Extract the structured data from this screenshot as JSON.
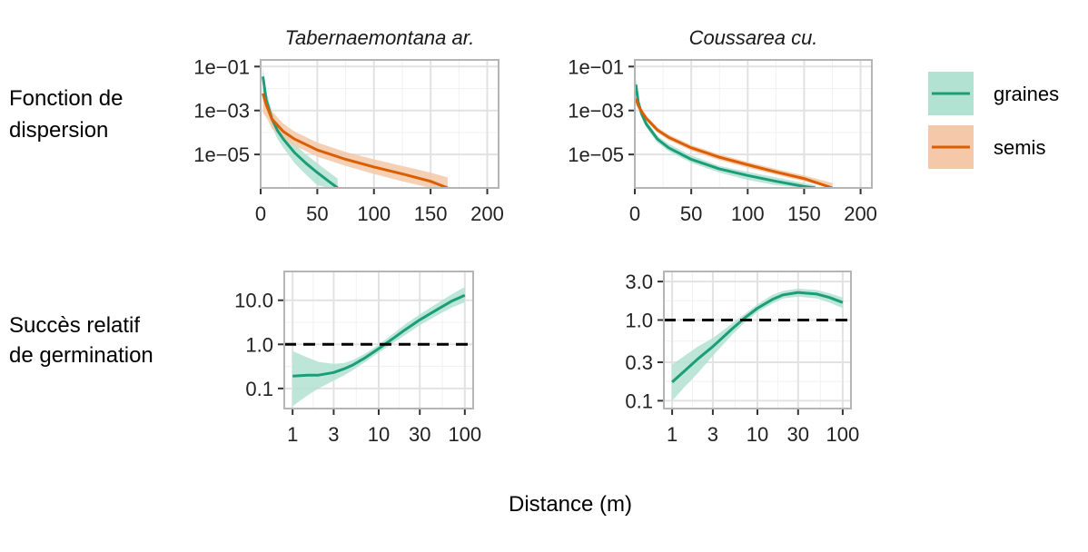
{
  "figure": {
    "row_labels": [
      [
        "Fonction de",
        "dispersion"
      ],
      [
        "Succès relatif",
        "de germination"
      ]
    ],
    "xlabel": "Distance (m)",
    "colors": {
      "graines_line": "#1b9e77",
      "graines_band": "#b2e2d2",
      "semis_line": "#d95f02",
      "semis_band": "#f4c8a8",
      "panel_border": "#b5b5b5",
      "grid_major": "#e2e2e2",
      "grid_minor": "#f1f1f1",
      "reference_line": "#000000"
    },
    "legend": {
      "placement": "right",
      "items": [
        {
          "label": "graines",
          "series": "graines"
        },
        {
          "label": "semis",
          "series": "semis"
        }
      ]
    }
  },
  "chart_data": [
    {
      "id": "disp-tab",
      "type": "line",
      "title": "Tabernaemontana ar.",
      "xscale": "linear",
      "yscale": "log10",
      "xlim": [
        0,
        210
      ],
      "ylim": [
        3e-07,
        0.2
      ],
      "x_ticks": [
        0,
        50,
        100,
        150,
        200
      ],
      "x_tick_labels": [
        "0",
        "50",
        "100",
        "150",
        "200"
      ],
      "y_ticks": [
        0.1,
        0.001,
        1e-05
      ],
      "y_tick_labels": [
        "1e−01",
        "1e−03",
        "1e−05"
      ],
      "series": [
        {
          "name": "graines",
          "x": [
            2,
            5,
            10,
            15,
            20,
            30,
            40,
            50,
            60,
            68
          ],
          "y": [
            0.035,
            0.003,
            0.0004,
            0.00012,
            5e-05,
            1.2e-05,
            4e-06,
            1.5e-06,
            6e-07,
            3e-07
          ],
          "lower": [
            0.01,
            0.0012,
            0.00018,
            5e-05,
            2e-05,
            4e-06,
            1.2e-06,
            4e-07,
            3e-07,
            3e-07
          ],
          "upper": [
            0.09,
            0.007,
            0.0009,
            0.00028,
            0.00012,
            3e-05,
            1e-05,
            4e-06,
            1.6e-06,
            8e-07
          ]
        },
        {
          "name": "semis",
          "x": [
            2,
            5,
            10,
            20,
            30,
            50,
            75,
            100,
            125,
            150,
            165
          ],
          "y": [
            0.006,
            0.0018,
            0.0004,
            0.00011,
            5e-05,
            1.6e-05,
            6e-06,
            2.7e-06,
            1.3e-06,
            6e-07,
            3e-07
          ],
          "lower": [
            0.0008,
            0.0005,
            0.00015,
            5e-05,
            2.5e-05,
            8e-06,
            3e-06,
            1.3e-06,
            6e-07,
            3e-07,
            3e-07
          ],
          "upper": [
            0.012,
            0.0035,
            0.0009,
            0.00025,
            0.00011,
            3.5e-05,
            1.3e-05,
            6e-06,
            3e-06,
            1.5e-06,
            9e-07
          ]
        }
      ]
    },
    {
      "id": "disp-cou",
      "type": "line",
      "title": "Coussarea cu.",
      "xscale": "linear",
      "yscale": "log10",
      "xlim": [
        0,
        210
      ],
      "ylim": [
        3e-07,
        0.2
      ],
      "x_ticks": [
        0,
        50,
        100,
        150,
        200
      ],
      "x_tick_labels": [
        "0",
        "50",
        "100",
        "150",
        "200"
      ],
      "y_ticks": [
        0.1,
        0.001,
        1e-05
      ],
      "y_tick_labels": [
        "1e−01",
        "1e−03",
        "1e−05"
      ],
      "series": [
        {
          "name": "graines",
          "x": [
            1,
            3,
            6,
            10,
            20,
            30,
            50,
            75,
            100,
            125,
            150,
            160
          ],
          "y": [
            0.015,
            0.0025,
            0.0007,
            0.00025,
            5e-05,
            2e-05,
            6e-06,
            2.2e-06,
            1.1e-06,
            6e-07,
            3.5e-07,
            3e-07
          ],
          "lower": [
            0.008,
            0.0015,
            0.0005,
            0.00018,
            3.5e-05,
            1.4e-05,
            4.2e-06,
            1.5e-06,
            7e-07,
            4e-07,
            3e-07,
            3e-07
          ],
          "upper": [
            0.03,
            0.004,
            0.001,
            0.00035,
            7e-05,
            3e-05,
            9e-06,
            3e-06,
            1.6e-06,
            9e-07,
            5e-07,
            4e-07
          ]
        },
        {
          "name": "semis",
          "x": [
            1,
            3,
            6,
            10,
            20,
            30,
            50,
            75,
            100,
            125,
            150,
            175
          ],
          "y": [
            0.0035,
            0.0017,
            0.0009,
            0.00045,
            0.00013,
            6e-05,
            2e-05,
            7.5e-06,
            3.4e-06,
            1.6e-06,
            8e-07,
            3e-07
          ],
          "lower": [
            0.0025,
            0.0012,
            0.00065,
            0.00035,
            0.0001,
            4.5e-05,
            1.5e-05,
            5.5e-06,
            2.5e-06,
            1.2e-06,
            6e-07,
            3e-07
          ],
          "upper": [
            0.005,
            0.0024,
            0.0012,
            0.0006,
            0.00017,
            8e-05,
            2.7e-05,
            1e-05,
            4.6e-06,
            2.2e-06,
            1.1e-06,
            5e-07
          ]
        }
      ]
    },
    {
      "id": "germ-tab",
      "type": "line",
      "title": "",
      "xscale": "log10",
      "yscale": "log10",
      "xlim": [
        0.8,
        125
      ],
      "ylim": [
        0.035,
        45
      ],
      "x_ticks": [
        1,
        3,
        10,
        30,
        100
      ],
      "x_tick_labels": [
        "1",
        "3",
        "10",
        "30",
        "100"
      ],
      "y_ticks": [
        10,
        1,
        0.1
      ],
      "y_tick_labels": [
        "10.0",
        "1.0",
        "0.1"
      ],
      "reference_y": 1,
      "series": [
        {
          "name": "graines",
          "x": [
            1,
            1.5,
            2,
            3,
            4,
            5,
            7,
            10,
            15,
            20,
            30,
            50,
            70,
            100
          ],
          "y": [
            0.19,
            0.2,
            0.2,
            0.23,
            0.28,
            0.34,
            0.5,
            0.8,
            1.4,
            2.1,
            3.6,
            6.5,
            9.5,
            13
          ],
          "lower": [
            0.04,
            0.07,
            0.1,
            0.15,
            0.2,
            0.26,
            0.4,
            0.65,
            1.1,
            1.6,
            2.7,
            4.8,
            6.8,
            9
          ],
          "upper": [
            0.7,
            0.5,
            0.4,
            0.36,
            0.38,
            0.44,
            0.62,
            0.98,
            1.8,
            2.8,
            4.8,
            9,
            13.5,
            20
          ]
        }
      ]
    },
    {
      "id": "germ-cou",
      "type": "line",
      "title": "",
      "xscale": "log10",
      "yscale": "log10",
      "xlim": [
        0.8,
        125
      ],
      "ylim": [
        0.08,
        4
      ],
      "x_ticks": [
        1,
        3,
        10,
        30,
        100
      ],
      "x_tick_labels": [
        "1",
        "3",
        "10",
        "30",
        "100"
      ],
      "y_ticks": [
        3,
        1,
        0.3,
        0.1
      ],
      "y_tick_labels": [
        "3.0",
        "1.0",
        "0.3",
        "0.1"
      ],
      "reference_y": 1,
      "series": [
        {
          "name": "graines",
          "x": [
            1,
            1.5,
            2,
            3,
            4,
            5,
            7,
            10,
            15,
            20,
            30,
            50,
            70,
            100
          ],
          "y": [
            0.17,
            0.25,
            0.33,
            0.47,
            0.62,
            0.77,
            1.05,
            1.4,
            1.8,
            2.05,
            2.2,
            2.1,
            1.9,
            1.65
          ],
          "lower": [
            0.1,
            0.16,
            0.22,
            0.36,
            0.5,
            0.65,
            0.92,
            1.25,
            1.6,
            1.85,
            1.95,
            1.85,
            1.65,
            1.4
          ],
          "upper": [
            0.28,
            0.38,
            0.47,
            0.6,
            0.75,
            0.9,
            1.18,
            1.56,
            2.05,
            2.3,
            2.45,
            2.35,
            2.15,
            1.9
          ]
        }
      ]
    }
  ]
}
